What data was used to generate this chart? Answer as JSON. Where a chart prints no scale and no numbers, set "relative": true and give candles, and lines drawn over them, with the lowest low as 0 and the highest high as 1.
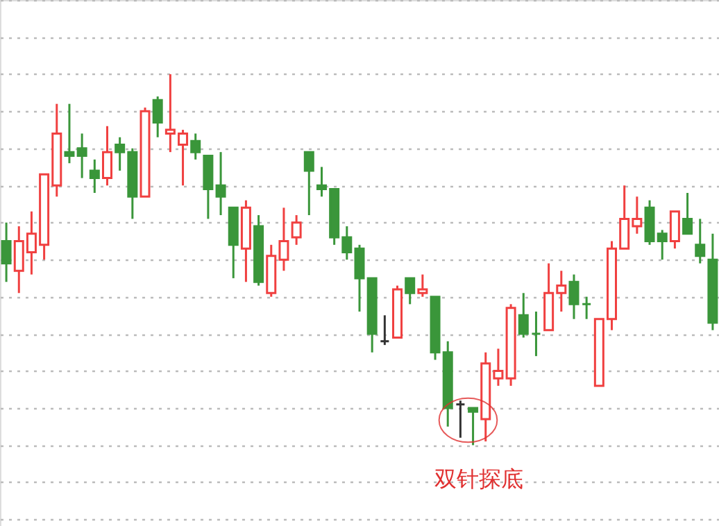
{
  "chart_data": {
    "type": "candlestick",
    "relative": true,
    "grid": "y",
    "categories": [
      null,
      null,
      null,
      null,
      null,
      null,
      null,
      null,
      null,
      null,
      null,
      null,
      null,
      null,
      null,
      null,
      null,
      null,
      null,
      null,
      null,
      null,
      null,
      null,
      null,
      null,
      null,
      null,
      null,
      null,
      null,
      null,
      null,
      null,
      null,
      null,
      null,
      null,
      null,
      null,
      null,
      null,
      null,
      null,
      null,
      null,
      null,
      null,
      null,
      null,
      null,
      null,
      null,
      null,
      null,
      null,
      null
    ],
    "ohlc": [
      [
        0.55,
        0.6,
        0.44,
        0.49
      ],
      [
        0.47,
        0.59,
        0.41,
        0.55
      ],
      [
        0.52,
        0.63,
        0.46,
        0.57
      ],
      [
        0.54,
        0.73,
        0.5,
        0.73
      ],
      [
        0.7,
        0.92,
        0.67,
        0.84
      ],
      [
        0.79,
        0.92,
        0.76,
        0.78
      ],
      [
        0.8,
        0.84,
        0.72,
        0.78
      ],
      [
        0.74,
        0.77,
        0.68,
        0.72
      ],
      [
        0.72,
        0.86,
        0.7,
        0.79
      ],
      [
        0.81,
        0.83,
        0.74,
        0.79
      ],
      [
        0.79,
        0.8,
        0.61,
        0.67
      ],
      [
        0.67,
        0.91,
        0.67,
        0.9
      ],
      [
        0.93,
        0.94,
        0.83,
        0.87
      ],
      [
        0.84,
        1,
        0.79,
        0.85
      ],
      [
        0.81,
        0.85,
        0.7,
        0.84
      ],
      [
        0.82,
        0.84,
        0.77,
        0.79
      ],
      [
        0.78,
        0.78,
        0.61,
        0.69
      ],
      [
        0.7,
        0.79,
        0.62,
        0.67
      ],
      [
        0.64,
        0.64,
        0.45,
        0.54
      ],
      [
        0.53,
        0.66,
        0.44,
        0.64
      ],
      [
        0.59,
        0.62,
        0.43,
        0.44
      ],
      [
        0.41,
        0.54,
        0.4,
        0.51
      ],
      [
        0.5,
        0.64,
        0.47,
        0.55
      ],
      [
        0.56,
        0.62,
        0.54,
        0.6
      ],
      [
        0.79,
        0.79,
        0.62,
        0.74
      ],
      [
        0.7,
        0.75,
        0.67,
        0.69
      ],
      [
        0.69,
        0.69,
        0.54,
        0.56
      ],
      [
        0.56,
        0.59,
        0.5,
        0.52
      ],
      [
        0.53,
        0.54,
        0.36,
        0.45
      ],
      [
        0.45,
        0.45,
        0.25,
        0.3
      ],
      [
        0.28,
        0.35,
        0.27,
        0.28
      ],
      [
        0.29,
        0.43,
        0.29,
        0.42
      ],
      [
        0.45,
        0.45,
        0.38,
        0.41
      ],
      [
        0.41,
        0.46,
        0.4,
        0.42
      ],
      [
        0.4,
        0.4,
        0.23,
        0.25
      ],
      [
        0.25,
        0.28,
        0.05,
        0.1
      ],
      [
        0.11,
        0.12,
        0.02,
        0.11
      ],
      [
        0.1,
        0.1,
        0,
        0.09
      ],
      [
        0.07,
        0.25,
        0.01,
        0.22
      ],
      [
        0.18,
        0.26,
        0.16,
        0.2
      ],
      [
        0.18,
        0.38,
        0.16,
        0.37
      ],
      [
        0.35,
        0.41,
        0.29,
        0.3
      ],
      [
        0.3,
        0.36,
        0.24,
        0.3
      ],
      [
        0.31,
        0.49,
        0.31,
        0.41
      ],
      [
        0.41,
        0.47,
        0.36,
        0.43
      ],
      [
        0.44,
        0.46,
        0.34,
        0.38
      ],
      [
        0.38,
        0.4,
        0.34,
        0.38
      ],
      [
        0.16,
        0.34,
        0.16,
        0.34
      ],
      [
        0.34,
        0.55,
        0.31,
        0.53
      ],
      [
        0.53,
        0.7,
        0.53,
        0.61
      ],
      [
        0.59,
        0.67,
        0.57,
        0.61
      ],
      [
        0.64,
        0.66,
        0.54,
        0.55
      ],
      [
        0.57,
        0.58,
        0.5,
        0.55
      ],
      [
        0.55,
        0.63,
        0.53,
        0.63
      ],
      [
        0.61,
        0.68,
        0.57,
        0.57
      ],
      [
        0.54,
        0.61,
        0.49,
        0.51
      ],
      [
        0.5,
        0.57,
        0.31,
        0.33
      ]
    ],
    "colors": [
      "#3a963a",
      "#f04040",
      "#f04040",
      "#f04040",
      "#f04040",
      "#3a963a",
      "#3a963a",
      "#3a963a",
      "#f04040",
      "#3a963a",
      "#3a963a",
      "#f04040",
      "#3a963a",
      "#f04040",
      "#f04040",
      "#3a963a",
      "#3a963a",
      "#3a963a",
      "#3a963a",
      "#f04040",
      "#3a963a",
      "#f04040",
      "#f04040",
      "#f04040",
      "#3a963a",
      "#3a963a",
      "#3a963a",
      "#3a963a",
      "#3a963a",
      "#3a963a",
      "#333333",
      "#f04040",
      "#3a963a",
      "#f04040",
      "#3a963a",
      "#3a963a",
      "#333333",
      "#3a963a",
      "#f04040",
      "#f04040",
      "#f04040",
      "#3a963a",
      "#3a963a",
      "#f04040",
      "#f04040",
      "#3a963a",
      "#3a963a",
      "#f04040",
      "#f04040",
      "#f04040",
      "#f04040",
      "#3a963a",
      "#3a963a",
      "#f04040",
      "#3a963a",
      "#3a963a",
      "#3a963a"
    ],
    "annotations": [
      "双针探底"
    ]
  }
}
